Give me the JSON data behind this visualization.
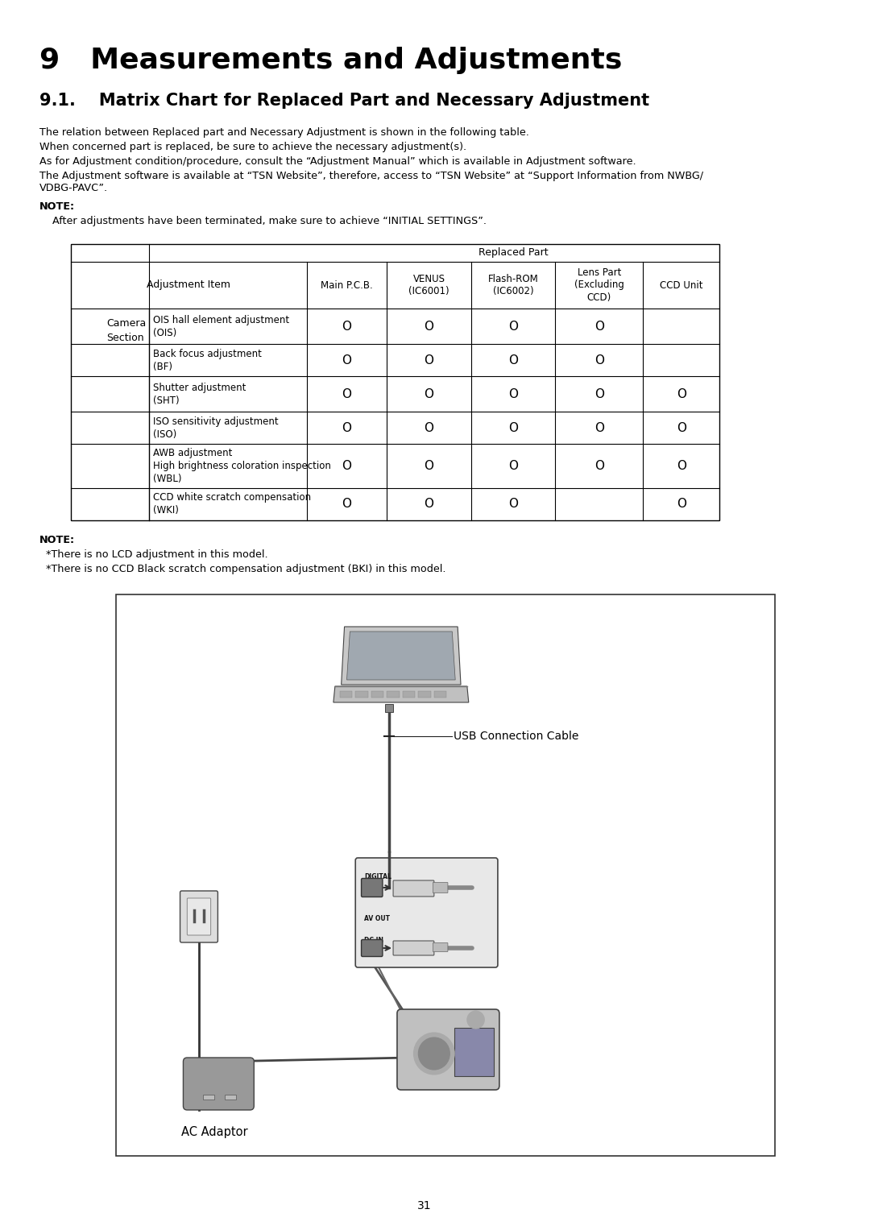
{
  "title": "9   Measurements and Adjustments",
  "subtitle": "9.1.    Matrix Chart for Replaced Part and Necessary Adjustment",
  "body_text": [
    "The relation between Replaced part and Necessary Adjustment is shown in the following table.",
    "When concerned part is replaced, be sure to achieve the necessary adjustment(s).",
    "As for Adjustment condition/procedure, consult the “Adjustment Manual” which is available in Adjustment software.",
    "The Adjustment software is available at “TSN Website”, therefore, access to “TSN Website” at “Support Information from NWBG/\nVDBG-PAVC”."
  ],
  "note_label": "NOTE:",
  "note_text": "    After adjustments have been terminated, make sure to achieve “INITIAL SETTINGS”.",
  "table_header_top": "Replaced Part",
  "table_col_headers": [
    "Main P.C.B.",
    "VENUS\n(IC6001)",
    "Flash-ROM\n(IC6002)",
    "Lens Part\n(Excluding\nCCD)",
    "CCD Unit"
  ],
  "table_row_label_left": "Adjustment Item",
  "table_section_label": "Camera\nSection",
  "table_rows": [
    {
      "label": "OIS hall element adjustment\n(OIS)",
      "values": [
        "O",
        "O",
        "O",
        "O",
        ""
      ]
    },
    {
      "label": "Back focus adjustment\n(BF)",
      "values": [
        "O",
        "O",
        "O",
        "O",
        ""
      ]
    },
    {
      "label": "Shutter adjustment\n(SHT)",
      "values": [
        "O",
        "O",
        "O",
        "O",
        "O"
      ]
    },
    {
      "label": "ISO sensitivity adjustment\n(ISO)",
      "values": [
        "O",
        "O",
        "O",
        "O",
        "O"
      ]
    },
    {
      "label": "AWB adjustment\nHigh brightness coloration inspection\n(WBL)",
      "values": [
        "O",
        "O",
        "O",
        "O",
        "O"
      ]
    },
    {
      "label": "CCD white scratch compensation\n(WKI)",
      "values": [
        "O",
        "O",
        "O",
        "",
        "O"
      ]
    }
  ],
  "after_note_label": "NOTE:",
  "after_note_lines": [
    "  *There is no LCD adjustment in this model.",
    "  *There is no CCD Black scratch compensation adjustment (BKI) in this model."
  ],
  "diagram_label_usb": "USB Connection Cable",
  "diagram_label_ac": "AC Adaptor",
  "page_number": "31",
  "bg_color": "#ffffff",
  "text_color": "#000000"
}
